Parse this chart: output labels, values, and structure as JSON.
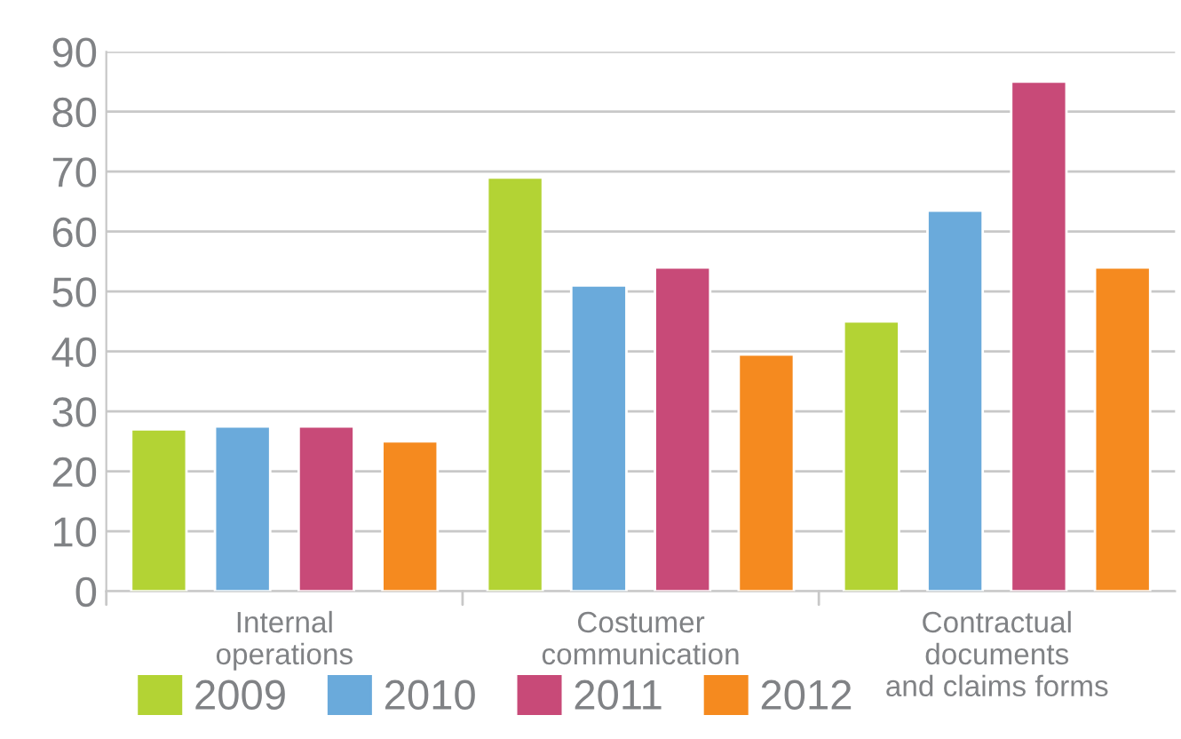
{
  "chart_data": {
    "type": "bar",
    "categories": [
      "Internal\noperations",
      "Costumer\ncommunication",
      "Contractual\ndocuments\nand claims forms"
    ],
    "series": [
      {
        "name": "2009",
        "color": "#b3d334",
        "values": [
          27,
          69,
          45
        ]
      },
      {
        "name": "2010",
        "color": "#6aaadb",
        "values": [
          27.5,
          51,
          63.5
        ]
      },
      {
        "name": "2011",
        "color": "#c84a78",
        "values": [
          27.5,
          54,
          85
        ]
      },
      {
        "name": "2012",
        "color": "#f58a1f",
        "values": [
          25,
          39.5,
          54
        ]
      }
    ],
    "ylim": [
      0,
      90
    ],
    "yticks": [
      0,
      10,
      20,
      30,
      40,
      50,
      60,
      70,
      80,
      90
    ],
    "grid": "y",
    "legend": "bottom left"
  }
}
